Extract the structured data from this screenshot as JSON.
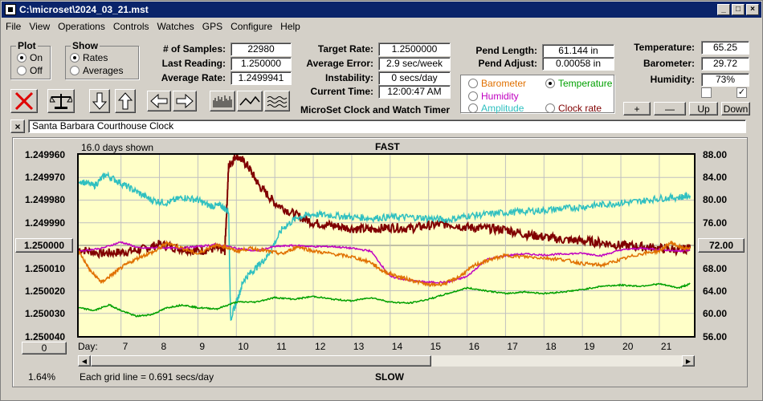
{
  "window": {
    "title": "C:\\microset\\2024_03_21.mst"
  },
  "menu": [
    "File",
    "View",
    "Operations",
    "Controls",
    "Watches",
    "GPS",
    "Configure",
    "Help"
  ],
  "plot_group": {
    "title": "Plot",
    "on": "On",
    "off": "Off",
    "selected": "On"
  },
  "show_group": {
    "title": "Show",
    "rates": "Rates",
    "averages": "Averages",
    "selected": "Rates"
  },
  "stats": {
    "samples_label": "# of Samples:",
    "samples": "22980",
    "last_label": "Last Reading:",
    "last": "1.250000",
    "avg_label": "Average Rate:",
    "avg": "1.2499941",
    "target_label": "Target Rate:",
    "target": "1.2500000",
    "avgerr_label": "Average Error:",
    "avgerr": "2.9 sec/week",
    "instab_label": "Instability:",
    "instab": "0 secs/day",
    "time_label": "Current Time:",
    "time": "12:00:47 AM",
    "pend_label": "Pend Length:",
    "pend": "61.144 in",
    "adjust_label": "Pend Adjust:",
    "adjust": "0.00058 in",
    "temp_label": "Temperature:",
    "temp": "65.25",
    "baro_label": "Barometer:",
    "baro": "29.72",
    "hum_label": "Humidity:",
    "hum": "73%"
  },
  "app_name": "MicroSet Clock and Watch Timer",
  "aux_options": {
    "barometer": "Barometer",
    "temperature": "Temperature",
    "humidity": "Humidity",
    "amplitude": "Amplitude",
    "clock_rate": "Clock rate",
    "selected": "Temperature"
  },
  "aux_colors": {
    "barometer": "#e07000",
    "temperature": "#00a000",
    "humidity": "#c000c0",
    "amplitude": "#30c0c0",
    "clock_rate": "#800000"
  },
  "aux_buttons": {
    "plus": "+",
    "minus": "—",
    "up": "Up",
    "down": "Down"
  },
  "checkbox_right_checked": true,
  "clock_name": "Santa Barbara Courthouse Clock",
  "close_x": "×",
  "chart_labels": {
    "days_shown": "16.0 days shown",
    "fast": "FAST",
    "slow": "SLOW",
    "day_label": "Day:",
    "grid_note": "Each grid line = 0.691 secs/day",
    "percent": "1.64%",
    "center_left": "1.250000",
    "center_right": "72.00",
    "bottom_btn": "0"
  },
  "chart_data": {
    "type": "line",
    "xlabel": "Day:",
    "x_ticks": [
      7,
      8,
      9,
      10,
      11,
      12,
      13,
      14,
      15,
      16,
      17,
      18,
      19,
      20,
      21
    ],
    "xlim": [
      5.9,
      21.9
    ],
    "y_left_ticks": [
      "1.249960",
      "1.249970",
      "1.249980",
      "1.249990",
      "1.250000",
      "1.250010",
      "1.250020",
      "1.250030",
      "1.250040"
    ],
    "y_left_lim": [
      1.24996,
      1.25004
    ],
    "y_right_ticks": [
      "88.00",
      "84.00",
      "80.00",
      "76.00",
      "72.00",
      "68.00",
      "64.00",
      "60.00",
      "56.00"
    ],
    "y_right_lim": [
      56,
      88
    ],
    "series": [
      {
        "key": "clock_rate",
        "x": [
          5.9,
          6.5,
          7,
          7.5,
          8,
          8.5,
          9,
          9.5,
          9.7,
          9.8,
          10,
          10.3,
          10.6,
          11,
          11.5,
          12,
          12.5,
          13,
          13.5,
          14,
          14.5,
          15,
          15.5,
          16,
          16.5,
          17,
          17.5,
          18,
          18.5,
          19,
          19.5,
          20,
          20.5,
          21,
          21.5,
          21.8
        ],
        "y": [
          71.3,
          70.6,
          70.8,
          71.2,
          72.2,
          71.5,
          71.0,
          71.5,
          71.0,
          86,
          88,
          86,
          82.5,
          79.5,
          77.5,
          76.0,
          75.5,
          75.0,
          74.8,
          75.2,
          75.0,
          75.5,
          75.8,
          75.2,
          75.0,
          74.8,
          74.0,
          73.5,
          73.0,
          72.8,
          72.5,
          72.0,
          71.8,
          71.5,
          71.2,
          71.5
        ]
      },
      {
        "key": "amplitude",
        "x": [
          5.9,
          6.3,
          6.6,
          7,
          7.4,
          7.8,
          8.2,
          8.6,
          9,
          9.3,
          9.6,
          9.8,
          9.85,
          10,
          10.2,
          10.5,
          10.8,
          11.2,
          11.6,
          12,
          12.5,
          13,
          13.5,
          14,
          14.5,
          15,
          15.5,
          16,
          16.5,
          17,
          17.5,
          18,
          18.5,
          19,
          19.5,
          20,
          20.5,
          21,
          21.5,
          21.8
        ],
        "y": [
          83.5,
          82.5,
          84.5,
          83.0,
          81.5,
          80.0,
          79.5,
          80.5,
          80.0,
          79.0,
          79.0,
          78.0,
          59.0,
          62.0,
          66.0,
          68.0,
          70.0,
          75.0,
          77.0,
          77.5,
          77.3,
          77.0,
          76.8,
          77.0,
          77.0,
          76.8,
          76.5,
          77.2,
          77.5,
          77.8,
          78.0,
          78.2,
          78.5,
          78.8,
          79.2,
          79.5,
          79.8,
          80.3,
          80.5,
          80.8
        ]
      },
      {
        "key": "humidity",
        "x": [
          5.9,
          6.5,
          7,
          7.5,
          8,
          8.5,
          9,
          9.5,
          10,
          10.5,
          11,
          11.5,
          12,
          12.5,
          13,
          13.5,
          14,
          14.5,
          15,
          15.5,
          16,
          16.5,
          17,
          17.5,
          18,
          18.5,
          19,
          19.5,
          20,
          20.5,
          21,
          21.5,
          21.8
        ],
        "y": [
          71.0,
          71.5,
          72.6,
          71.5,
          71.6,
          71.5,
          71.8,
          72.2,
          71.5,
          71.0,
          71.8,
          72.0,
          71.8,
          71.8,
          71.5,
          71.0,
          66.5,
          65.8,
          65.5,
          65.5,
          66.5,
          69.5,
          70.2,
          70.5,
          70.3,
          70.5,
          70.6,
          70.2,
          71.2,
          71.5,
          71.3,
          71.0,
          71.2
        ]
      },
      {
        "key": "barometer",
        "x": [
          5.9,
          6.2,
          6.5,
          6.8,
          7.1,
          7.5,
          7.9,
          8.2,
          8.6,
          9,
          9.4,
          9.7,
          10,
          10.4,
          10.8,
          11.2,
          11.6,
          12,
          12.5,
          13,
          13.5,
          13.8,
          14.2,
          14.6,
          15,
          15.4,
          15.8,
          16.2,
          16.6,
          17,
          17.5,
          18,
          18.5,
          19,
          19.5,
          20,
          20.5,
          21,
          21.3,
          21.6,
          21.8
        ],
        "y": [
          71.0,
          67.5,
          65.5,
          67.0,
          68.5,
          70.0,
          71.0,
          72.5,
          71.5,
          70.5,
          72.0,
          71.8,
          71.0,
          71.5,
          71.0,
          70.5,
          71.8,
          71.0,
          70.5,
          70.0,
          69.0,
          67.5,
          66.5,
          65.8,
          65.0,
          65.2,
          66.5,
          68.5,
          69.5,
          70.2,
          70.0,
          69.8,
          69.5,
          68.8,
          68.5,
          69.5,
          70.5,
          71.0,
          72.5,
          71.5,
          71.5
        ]
      },
      {
        "key": "temperature",
        "x": [
          5.9,
          6.3,
          6.7,
          7,
          7.4,
          7.8,
          8.2,
          8.6,
          9,
          9.5,
          10,
          10.5,
          11,
          11.5,
          12,
          12.5,
          13,
          13.5,
          14,
          14.5,
          15,
          15.5,
          16,
          16.5,
          17,
          17.5,
          18,
          18.5,
          19,
          19.5,
          20,
          20.5,
          21,
          21.5,
          21.8
        ],
        "y": [
          61.0,
          60.5,
          61.5,
          60.5,
          59.5,
          59.8,
          61.0,
          61.5,
          61.0,
          60.8,
          62.0,
          62.0,
          62.8,
          62.5,
          63.0,
          62.5,
          62.2,
          62.8,
          62.0,
          61.8,
          62.5,
          63.5,
          64.5,
          64.0,
          63.5,
          63.8,
          63.5,
          63.8,
          64.2,
          64.8,
          65.0,
          64.8,
          65.2,
          64.5,
          65.2
        ]
      }
    ]
  }
}
